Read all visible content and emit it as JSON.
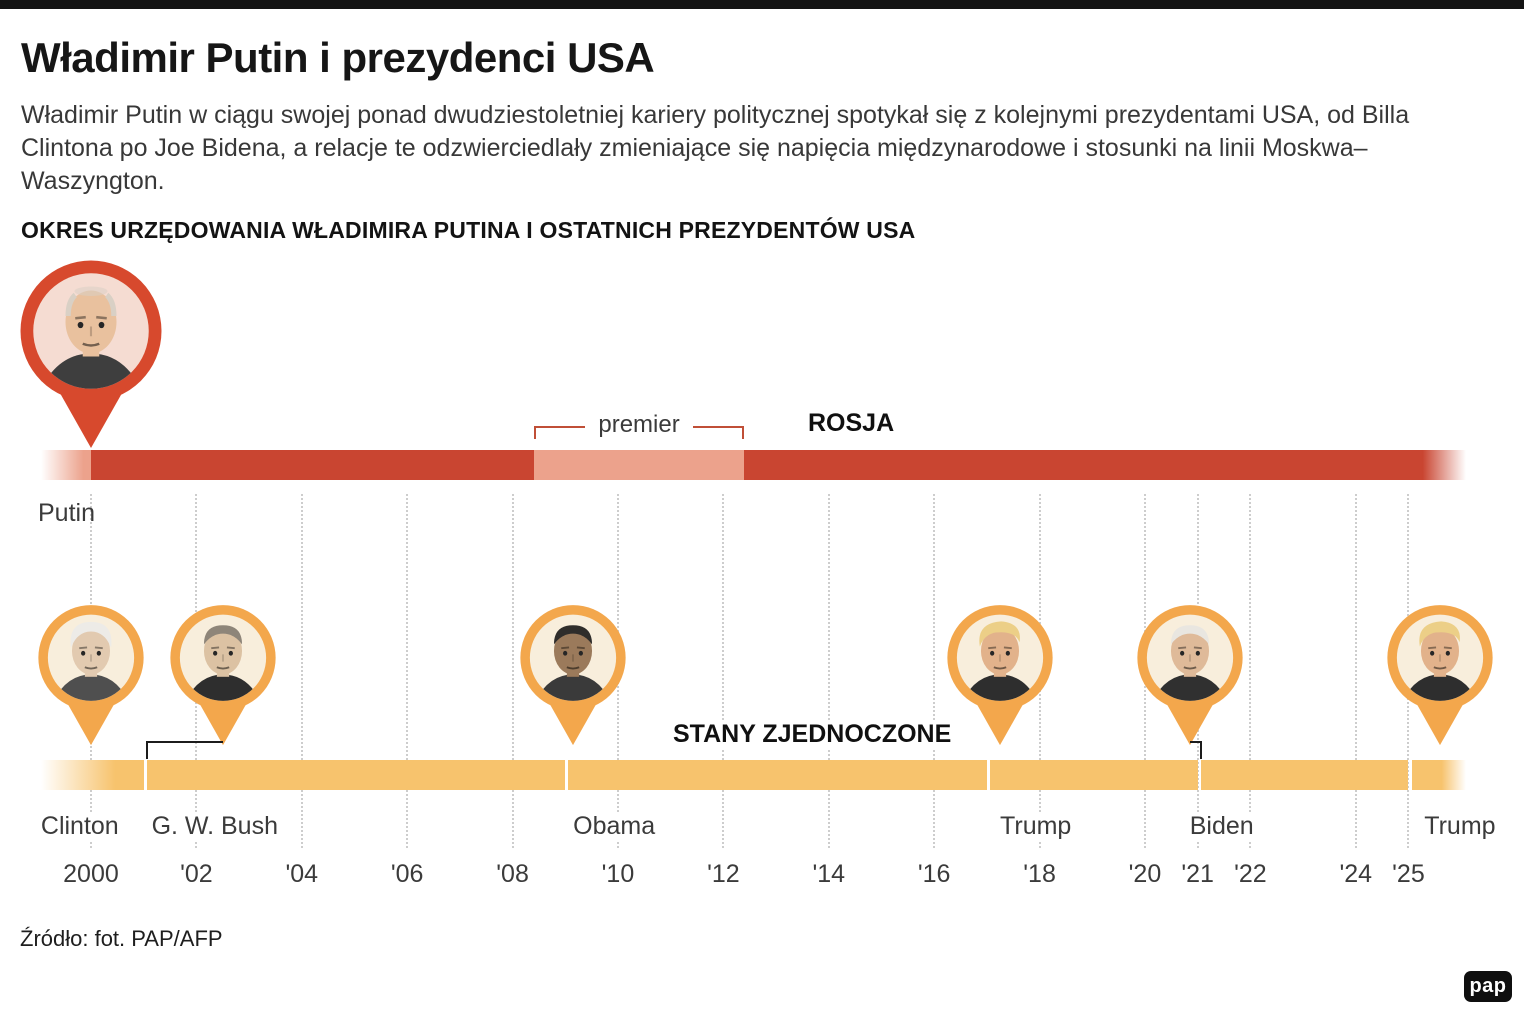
{
  "page": {
    "title": "Władimir Putin i prezydenci USA",
    "intro": "Władimir Putin w ciągu swojej ponad dwudziestoletniej kariery politycznej spotykał się z kolejnymi prezydentami USA, od Billa Clintona po Joe Bidena, a relacje te odzwierciedlały zmieniające się napięcia międzynarodowe i stosunki na linii Moskwa–Waszyngton.",
    "section_heading": "OKRES URZĘDOWANIA WŁADIMIRA PUTINA I OSTATNICH PREZYDENTÓW USA"
  },
  "footer": {
    "source": "Źródło: fot. PAP/AFP",
    "logo_text": "pap"
  },
  "chart_data": {
    "type": "timeline",
    "x_axis": {
      "start": 1999.05,
      "end": 2026.1,
      "ticks": [
        {
          "year": 2000,
          "label": "2000"
        },
        {
          "year": 2002,
          "label": "'02"
        },
        {
          "year": 2004,
          "label": "'04"
        },
        {
          "year": 2006,
          "label": "'06"
        },
        {
          "year": 2008,
          "label": "'08"
        },
        {
          "year": 2010,
          "label": "'10"
        },
        {
          "year": 2012,
          "label": "'12"
        },
        {
          "year": 2014,
          "label": "'14"
        },
        {
          "year": 2016,
          "label": "'16"
        },
        {
          "year": 2018,
          "label": "'18"
        },
        {
          "year": 2020,
          "label": "'20"
        },
        {
          "year": 2021,
          "label": "'21"
        },
        {
          "year": 2022,
          "label": "'22"
        },
        {
          "year": 2024,
          "label": "'24"
        },
        {
          "year": 2025,
          "label": "'25"
        }
      ],
      "gridline_years": [
        2000,
        2002,
        2004,
        2006,
        2008,
        2010,
        2012,
        2014,
        2016,
        2018,
        2020,
        2021,
        2022,
        2024,
        2025
      ]
    },
    "russia": {
      "track_label": "ROSJA",
      "person_label": "Putin",
      "premier_label": "premier",
      "colors": {
        "president": "#c94531",
        "premier": "#eca28c"
      },
      "segments": [
        {
          "from": 1999.05,
          "to": 2000.0,
          "role": "premier",
          "fade_in": true
        },
        {
          "from": 2000.0,
          "to": 2008.4,
          "role": "president"
        },
        {
          "from": 2008.4,
          "to": 2012.4,
          "role": "premier",
          "bracket": true
        },
        {
          "from": 2012.4,
          "to": 2026.1,
          "role": "president",
          "fade_out": true
        }
      ],
      "pin": {
        "name": "Putin",
        "year": 2000.0,
        "portrait": "putin"
      }
    },
    "usa": {
      "track_label": "STANY ZJEDNOCZONE",
      "bar_color": "#f7c36d",
      "segments": [
        {
          "name": "Clinton",
          "from": 1999.05,
          "to": 2001.0,
          "fade_in": true,
          "label_year": 1999.05
        },
        {
          "name": "G. W. Bush",
          "from": 2001.06,
          "to": 2009.0,
          "label_year": 2001.15
        },
        {
          "name": "Obama",
          "from": 2009.06,
          "to": 2017.0,
          "label_year": 2009.15
        },
        {
          "name": "Trump",
          "from": 2017.06,
          "to": 2021.0,
          "label_year": 2017.25
        },
        {
          "name": "Biden",
          "from": 2021.06,
          "to": 2025.0,
          "label_year": 2020.85
        },
        {
          "name": "Trump",
          "from": 2025.06,
          "to": 2026.1,
          "fade_out": true,
          "label_year": 2025.3
        }
      ],
      "pins": [
        {
          "name": "Clinton",
          "year": 2000.0,
          "portrait": "clinton"
        },
        {
          "name": "G. W. Bush",
          "year": 2002.5,
          "portrait": "bush",
          "connector_to": 2001.06
        },
        {
          "name": "Obama",
          "year": 2009.15,
          "portrait": "obama"
        },
        {
          "name": "Trump",
          "year": 2017.25,
          "portrait": "trump"
        },
        {
          "name": "Biden",
          "year": 2020.85,
          "portrait": "biden",
          "connector_to": 2021.06
        },
        {
          "name": "Trump",
          "year": 2025.6,
          "portrait": "trump"
        }
      ]
    },
    "ring_colors": {
      "russia": "#d7492d",
      "usa": "#f3a74c"
    },
    "portraits": {
      "putin": {
        "bg": "#f5dcd2",
        "skin": "#e9c19e",
        "hair": "#d9d0c5",
        "suit": "#3e3e3e",
        "style": "bald"
      },
      "clinton": {
        "bg": "#f8eedc",
        "skin": "#e2cab0",
        "hair": "#edebe7",
        "suit": "#4f4f4f",
        "style": "full"
      },
      "bush": {
        "bg": "#f8eedc",
        "skin": "#dcc2a3",
        "hair": "#8e8579",
        "suit": "#2e2e2e",
        "style": "short"
      },
      "obama": {
        "bg": "#f8eedc",
        "skin": "#9b7a5b",
        "hair": "#2f2d2b",
        "suit": "#3a3a3a",
        "style": "short"
      },
      "trump": {
        "bg": "#f8eedc",
        "skin": "#e2b28b",
        "hair": "#eccf87",
        "suit": "#2e2e2e",
        "style": "swoop"
      },
      "biden": {
        "bg": "#f8eedc",
        "skin": "#dfba99",
        "hair": "#e9e6e0",
        "suit": "#303030",
        "style": "short"
      }
    }
  }
}
